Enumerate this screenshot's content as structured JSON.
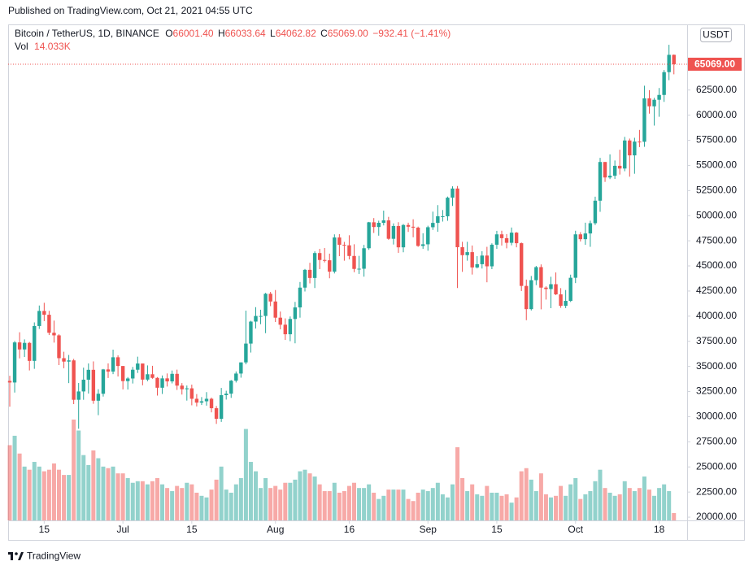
{
  "header": {
    "published": "Published on TradingView.com, Oct 21, 2021 04:55 UTC",
    "symbol": "Bitcoin / TetherUS, 1D, BINANCE",
    "ohlc": [
      [
        "O",
        "66001.40"
      ],
      [
        "H",
        "66033.64"
      ],
      [
        "L",
        "64062.82"
      ],
      [
        "C",
        "65069.00"
      ]
    ],
    "change": "−932.41 (−1.41%)",
    "vol_label": "Vol",
    "vol": "14.033K",
    "currency": "USDT"
  },
  "footer": {
    "brand": "TradingView"
  },
  "chart_data": {
    "type": "candlestick",
    "up_color": "#26a69a",
    "down_color": "#ef5350",
    "grid": false,
    "ylim": [
      19680,
      69030
    ],
    "yticks": [
      {
        "value": 20000,
        "label": "20000.00"
      },
      {
        "value": 22500,
        "label": "22500.00"
      },
      {
        "value": 25000,
        "label": "25000.00"
      },
      {
        "value": 27500,
        "label": "27500.00"
      },
      {
        "value": 30000,
        "label": "30000.00"
      },
      {
        "value": 32500,
        "label": "32500.00"
      },
      {
        "value": 35000,
        "label": "35000.00"
      },
      {
        "value": 37500,
        "label": "37500.00"
      },
      {
        "value": 40000,
        "label": "40000.00"
      },
      {
        "value": 42500,
        "label": "42500.00"
      },
      {
        "value": 45000,
        "label": "45000.00"
      },
      {
        "value": 47500,
        "label": "47500.00"
      },
      {
        "value": 50000,
        "label": "50000.00"
      },
      {
        "value": 52500,
        "label": "52500.00"
      },
      {
        "value": 55000,
        "label": "55000.00"
      },
      {
        "value": 57500,
        "label": "57500.00"
      },
      {
        "value": 60000,
        "label": "60000.00"
      },
      {
        "value": 62500,
        "label": "62500.00"
      }
    ],
    "xticks": [
      {
        "value": "Jun 15",
        "label": "15"
      },
      {
        "value": "Jul 1",
        "label": "Jul"
      },
      {
        "value": "Jul 15",
        "label": "15"
      },
      {
        "value": "Aug 1",
        "label": "Aug"
      },
      {
        "value": "Aug 16",
        "label": "16"
      },
      {
        "value": "Sep 1",
        "label": "Sep"
      },
      {
        "value": "Sep 15",
        "label": "15"
      },
      {
        "value": "Oct 1",
        "label": "Oct"
      },
      {
        "value": "Oct 18",
        "label": "18"
      }
    ],
    "last_label": "65069.00",
    "x": [
      "Jun 8",
      "Jun 9",
      "Jun 10",
      "Jun 11",
      "Jun 12",
      "Jun 13",
      "Jun 14",
      "Jun 15",
      "Jun 16",
      "Jun 17",
      "Jun 18",
      "Jun 19",
      "Jun 20",
      "Jun 21",
      "Jun 22",
      "Jun 23",
      "Jun 24",
      "Jun 25",
      "Jun 26",
      "Jun 27",
      "Jun 28",
      "Jun 29",
      "Jun 30",
      "Jul 1",
      "Jul 2",
      "Jul 3",
      "Jul 4",
      "Jul 5",
      "Jul 6",
      "Jul 7",
      "Jul 8",
      "Jul 9",
      "Jul 10",
      "Jul 11",
      "Jul 12",
      "Jul 13",
      "Jul 14",
      "Jul 15",
      "Jul 16",
      "Jul 17",
      "Jul 18",
      "Jul 19",
      "Jul 20",
      "Jul 21",
      "Jul 22",
      "Jul 23",
      "Jul 24",
      "Jul 25",
      "Jul 26",
      "Jul 27",
      "Jul 28",
      "Jul 29",
      "Jul 30",
      "Jul 31",
      "Aug 1",
      "Aug 2",
      "Aug 3",
      "Aug 4",
      "Aug 5",
      "Aug 6",
      "Aug 7",
      "Aug 8",
      "Aug 9",
      "Aug 10",
      "Aug 11",
      "Aug 12",
      "Aug 13",
      "Aug 14",
      "Aug 15",
      "Aug 16",
      "Aug 17",
      "Aug 18",
      "Aug 19",
      "Aug 20",
      "Aug 21",
      "Aug 22",
      "Aug 23",
      "Aug 24",
      "Aug 25",
      "Aug 26",
      "Aug 27",
      "Aug 28",
      "Aug 29",
      "Aug 30",
      "Aug 31",
      "Sep 1",
      "Sep 2",
      "Sep 3",
      "Sep 4",
      "Sep 5",
      "Sep 6",
      "Sep 7",
      "Sep 8",
      "Sep 9",
      "Sep 10",
      "Sep 11",
      "Sep 12",
      "Sep 13",
      "Sep 14",
      "Sep 15",
      "Sep 16",
      "Sep 17",
      "Sep 18",
      "Sep 19",
      "Sep 20",
      "Sep 21",
      "Sep 22",
      "Sep 23",
      "Sep 24",
      "Sep 25",
      "Sep 26",
      "Sep 27",
      "Sep 28",
      "Sep 29",
      "Sep 30",
      "Oct 1",
      "Oct 2",
      "Oct 3",
      "Oct 4",
      "Oct 5",
      "Oct 6",
      "Oct 7",
      "Oct 8",
      "Oct 9",
      "Oct 10",
      "Oct 11",
      "Oct 12",
      "Oct 13",
      "Oct 14",
      "Oct 15",
      "Oct 16",
      "Oct 17",
      "Oct 18",
      "Oct 19",
      "Oct 20",
      "Oct 21"
    ],
    "open": [
      33560,
      33400,
      37390,
      36690,
      37340,
      35550,
      39020,
      40520,
      40140,
      38350,
      38090,
      35820,
      35480,
      35600,
      31680,
      32510,
      33680,
      34660,
      31590,
      32280,
      34700,
      34490,
      35910,
      35040,
      33540,
      33800,
      34670,
      35290,
      33690,
      34220,
      33860,
      32880,
      33810,
      33510,
      34260,
      33090,
      32730,
      32820,
      31780,
      31400,
      31530,
      31780,
      30840,
      29790,
      32140,
      32290,
      33580,
      34290,
      35400,
      37270,
      39460,
      40020,
      40020,
      42230,
      41460,
      39850,
      39150,
      38200,
      39720,
      40870,
      42840,
      44610,
      43800,
      46280,
      45590,
      45560,
      44430,
      47830,
      47100,
      47050,
      45990,
      44700,
      44720,
      46760,
      49340,
      48870,
      49290,
      49530,
      47700,
      48970,
      46850,
      49070,
      48900,
      48810,
      46990,
      47150,
      48850,
      49280,
      49940,
      49940,
      51790,
      52700,
      46860,
      46070,
      46370,
      44850,
      45170,
      46030,
      44960,
      47110,
      48140,
      47760,
      47300,
      48310,
      47260,
      43010,
      40700,
      43580,
      44880,
      42840,
      42700,
      43180,
      42170,
      41030,
      41520,
      43820,
      48140,
      47660,
      48230,
      49250,
      51490,
      55340,
      53800,
      53970,
      54960,
      54690,
      57480,
      56000,
      57370,
      57350,
      61670,
      60880,
      61530,
      62010,
      64280,
      66001.4
    ],
    "high": [
      34070,
      37530,
      38400,
      37690,
      37440,
      39380,
      41060,
      41330,
      40530,
      39560,
      38200,
      36460,
      36140,
      35750,
      33350,
      34880,
      35300,
      35500,
      32730,
      34750,
      35300,
      36670,
      36100,
      35040,
      33940,
      34950,
      35970,
      35290,
      35100,
      35060,
      33940,
      34100,
      34300,
      34590,
      34680,
      33340,
      33100,
      33190,
      32250,
      31950,
      32440,
      31900,
      31060,
      32860,
      32580,
      33650,
      34500,
      35400,
      40550,
      39540,
      40900,
      40640,
      42320,
      42410,
      42600,
      40460,
      39780,
      39970,
      41420,
      43400,
      44700,
      45310,
      46450,
      46700,
      46780,
      46220,
      48140,
      48160,
      47390,
      48050,
      47160,
      46000,
      47090,
      49380,
      49760,
      49500,
      50500,
      49880,
      49230,
      49350,
      49170,
      49300,
      49640,
      48910,
      48250,
      49000,
      50400,
      51050,
      50560,
      51900,
      52920,
      52950,
      47400,
      47400,
      47030,
      45980,
      46460,
      46900,
      47250,
      48490,
      48500,
      48170,
      48820,
      48370,
      47330,
      43640,
      44000,
      45000,
      45150,
      42970,
      43920,
      44350,
      42790,
      42600,
      44130,
      48500,
      48360,
      49300,
      49500,
      51890,
      55750,
      55340,
      56100,
      55490,
      56560,
      57840,
      57670,
      57750,
      58530,
      62930,
      62490,
      61720,
      62700,
      64490,
      67000,
      66033.64
    ],
    "low": [
      31000,
      32400,
      35800,
      35940,
      34600,
      34760,
      38730,
      39510,
      38120,
      37370,
      35130,
      34820,
      33340,
      31250,
      28800,
      31680,
      32300,
      31280,
      30150,
      32000,
      33850,
      34230,
      34000,
      32710,
      32700,
      33300,
      34350,
      33120,
      33530,
      33770,
      32100,
      32260,
      33000,
      33310,
      32660,
      32200,
      31600,
      31130,
      31020,
      31160,
      31100,
      30430,
      29280,
      29480,
      31700,
      31870,
      33400,
      33880,
      35210,
      36380,
      38770,
      39200,
      38310,
      41000,
      39420,
      38690,
      37640,
      37510,
      37300,
      39850,
      42450,
      43260,
      42800,
      44680,
      45350,
      43770,
      44250,
      45970,
      45520,
      45650,
      44380,
      44200,
      43930,
      46600,
      48280,
      48010,
      49030,
      47600,
      47130,
      46300,
      46360,
      48380,
      47850,
      46900,
      46700,
      46510,
      48580,
      48400,
      49410,
      49490,
      50970,
      42800,
      44410,
      45520,
      44140,
      44750,
      44740,
      43370,
      44680,
      46700,
      47020,
      46750,
      47050,
      46850,
      42500,
      39600,
      40570,
      43090,
      40680,
      41650,
      40800,
      42100,
      40830,
      40800,
      41410,
      43290,
      47430,
      47100,
      46900,
      49070,
      50380,
      53360,
      53640,
      53660,
      54090,
      54420,
      53880,
      54170,
      56820,
      56850,
      60150,
      58960,
      59840,
      61320,
      63480,
      64062.82
    ],
    "close": [
      33400,
      37390,
      36690,
      37340,
      35550,
      39020,
      40520,
      40140,
      38350,
      38090,
      35820,
      35480,
      35600,
      31680,
      32510,
      33680,
      34660,
      31590,
      32280,
      34700,
      34490,
      35910,
      35040,
      33540,
      33800,
      34670,
      35290,
      33690,
      34220,
      33860,
      32880,
      33810,
      33510,
      34260,
      33090,
      32730,
      32820,
      31780,
      31400,
      31530,
      31780,
      30840,
      29790,
      32140,
      32290,
      33580,
      34290,
      35400,
      37270,
      39460,
      40020,
      40020,
      42230,
      41460,
      39850,
      39150,
      38200,
      39720,
      40870,
      42840,
      44610,
      43800,
      46280,
      45590,
      45560,
      44430,
      47830,
      47100,
      47050,
      45990,
      44700,
      44720,
      46760,
      49340,
      48870,
      49290,
      49530,
      47700,
      48970,
      46850,
      49070,
      48900,
      48810,
      46990,
      47150,
      48850,
      49280,
      49940,
      49940,
      51790,
      52700,
      46860,
      46070,
      46370,
      44850,
      45170,
      46030,
      44960,
      47110,
      48140,
      47760,
      47300,
      48310,
      47260,
      43010,
      40700,
      43580,
      44880,
      42840,
      42700,
      43180,
      42170,
      41030,
      41520,
      43820,
      48140,
      47660,
      48230,
      49250,
      51490,
      55340,
      53800,
      53970,
      54960,
      54690,
      57480,
      56000,
      57370,
      57350,
      61670,
      60880,
      61530,
      62010,
      64280,
      66001.4,
      65069
    ],
    "volume": [
      144,
      162,
      128,
      103,
      97,
      112,
      103,
      94,
      97,
      109,
      97,
      87,
      87,
      193,
      172,
      125,
      106,
      134,
      119,
      103,
      100,
      103,
      90,
      90,
      81,
      72,
      75,
      75,
      69,
      75,
      81,
      69,
      62,
      56,
      66,
      62,
      72,
      69,
      53,
      47,
      44,
      59,
      78,
      103,
      59,
      53,
      69,
      81,
      175,
      112,
      94,
      62,
      81,
      62,
      66,
      59,
      72,
      72,
      78,
      94,
      97,
      90,
      84,
      69,
      56,
      56,
      72,
      53,
      56,
      66,
      72,
      62,
      62,
      69,
      53,
      41,
      47,
      59,
      59,
      59,
      59,
      41,
      37,
      53,
      59,
      56,
      62,
      72,
      50,
      44,
      69,
      140,
      81,
      56,
      69,
      50,
      47,
      66,
      53,
      53,
      47,
      50,
      34,
      44,
      94,
      100,
      78,
      56,
      90,
      50,
      44,
      47,
      66,
      47,
      69,
      81,
      41,
      50,
      56,
      75,
      97,
      62,
      53,
      47,
      50,
      75,
      62,
      56,
      62,
      84,
      59,
      47,
      62,
      69,
      56,
      14.033
    ]
  }
}
